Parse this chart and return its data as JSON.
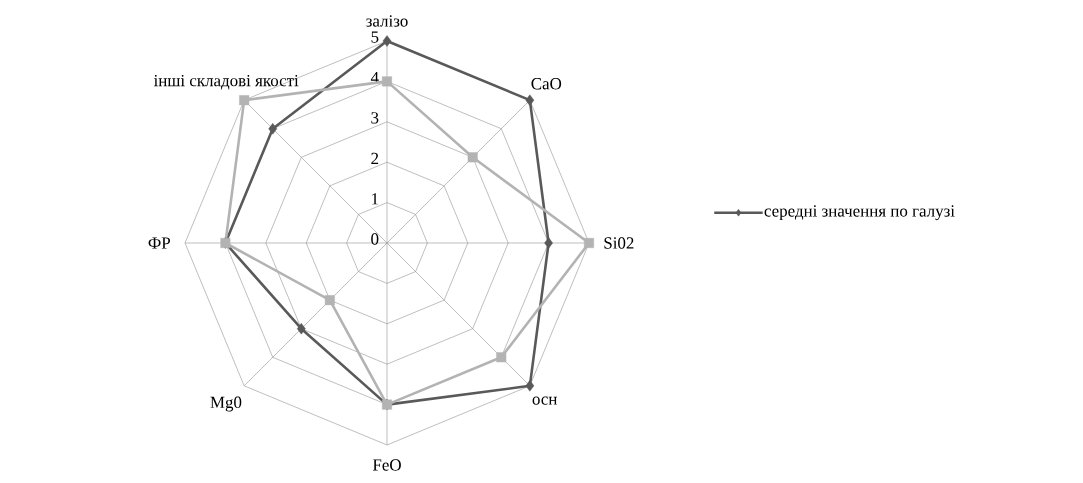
{
  "chart_data": {
    "type": "radar",
    "categories": [
      "залізо",
      "CaO",
      "Si02",
      "осн",
      "FeO",
      "Mg0",
      "ФР",
      "інші складові якості"
    ],
    "ylim": [
      0,
      5
    ],
    "yticks": [
      0,
      1,
      2,
      3,
      4,
      5
    ],
    "grid": true,
    "legend": "right",
    "line_style": "solid",
    "series": [
      {
        "name": "середні значення по галузі",
        "color": "#595959",
        "marker": "diamond",
        "values": [
          5,
          5,
          4,
          5,
          4,
          3,
          4,
          4
        ]
      },
      {
        "color": "#b3b3b3",
        "marker": "square",
        "values": [
          4,
          3,
          5,
          4,
          4,
          2,
          4,
          5
        ]
      }
    ]
  }
}
